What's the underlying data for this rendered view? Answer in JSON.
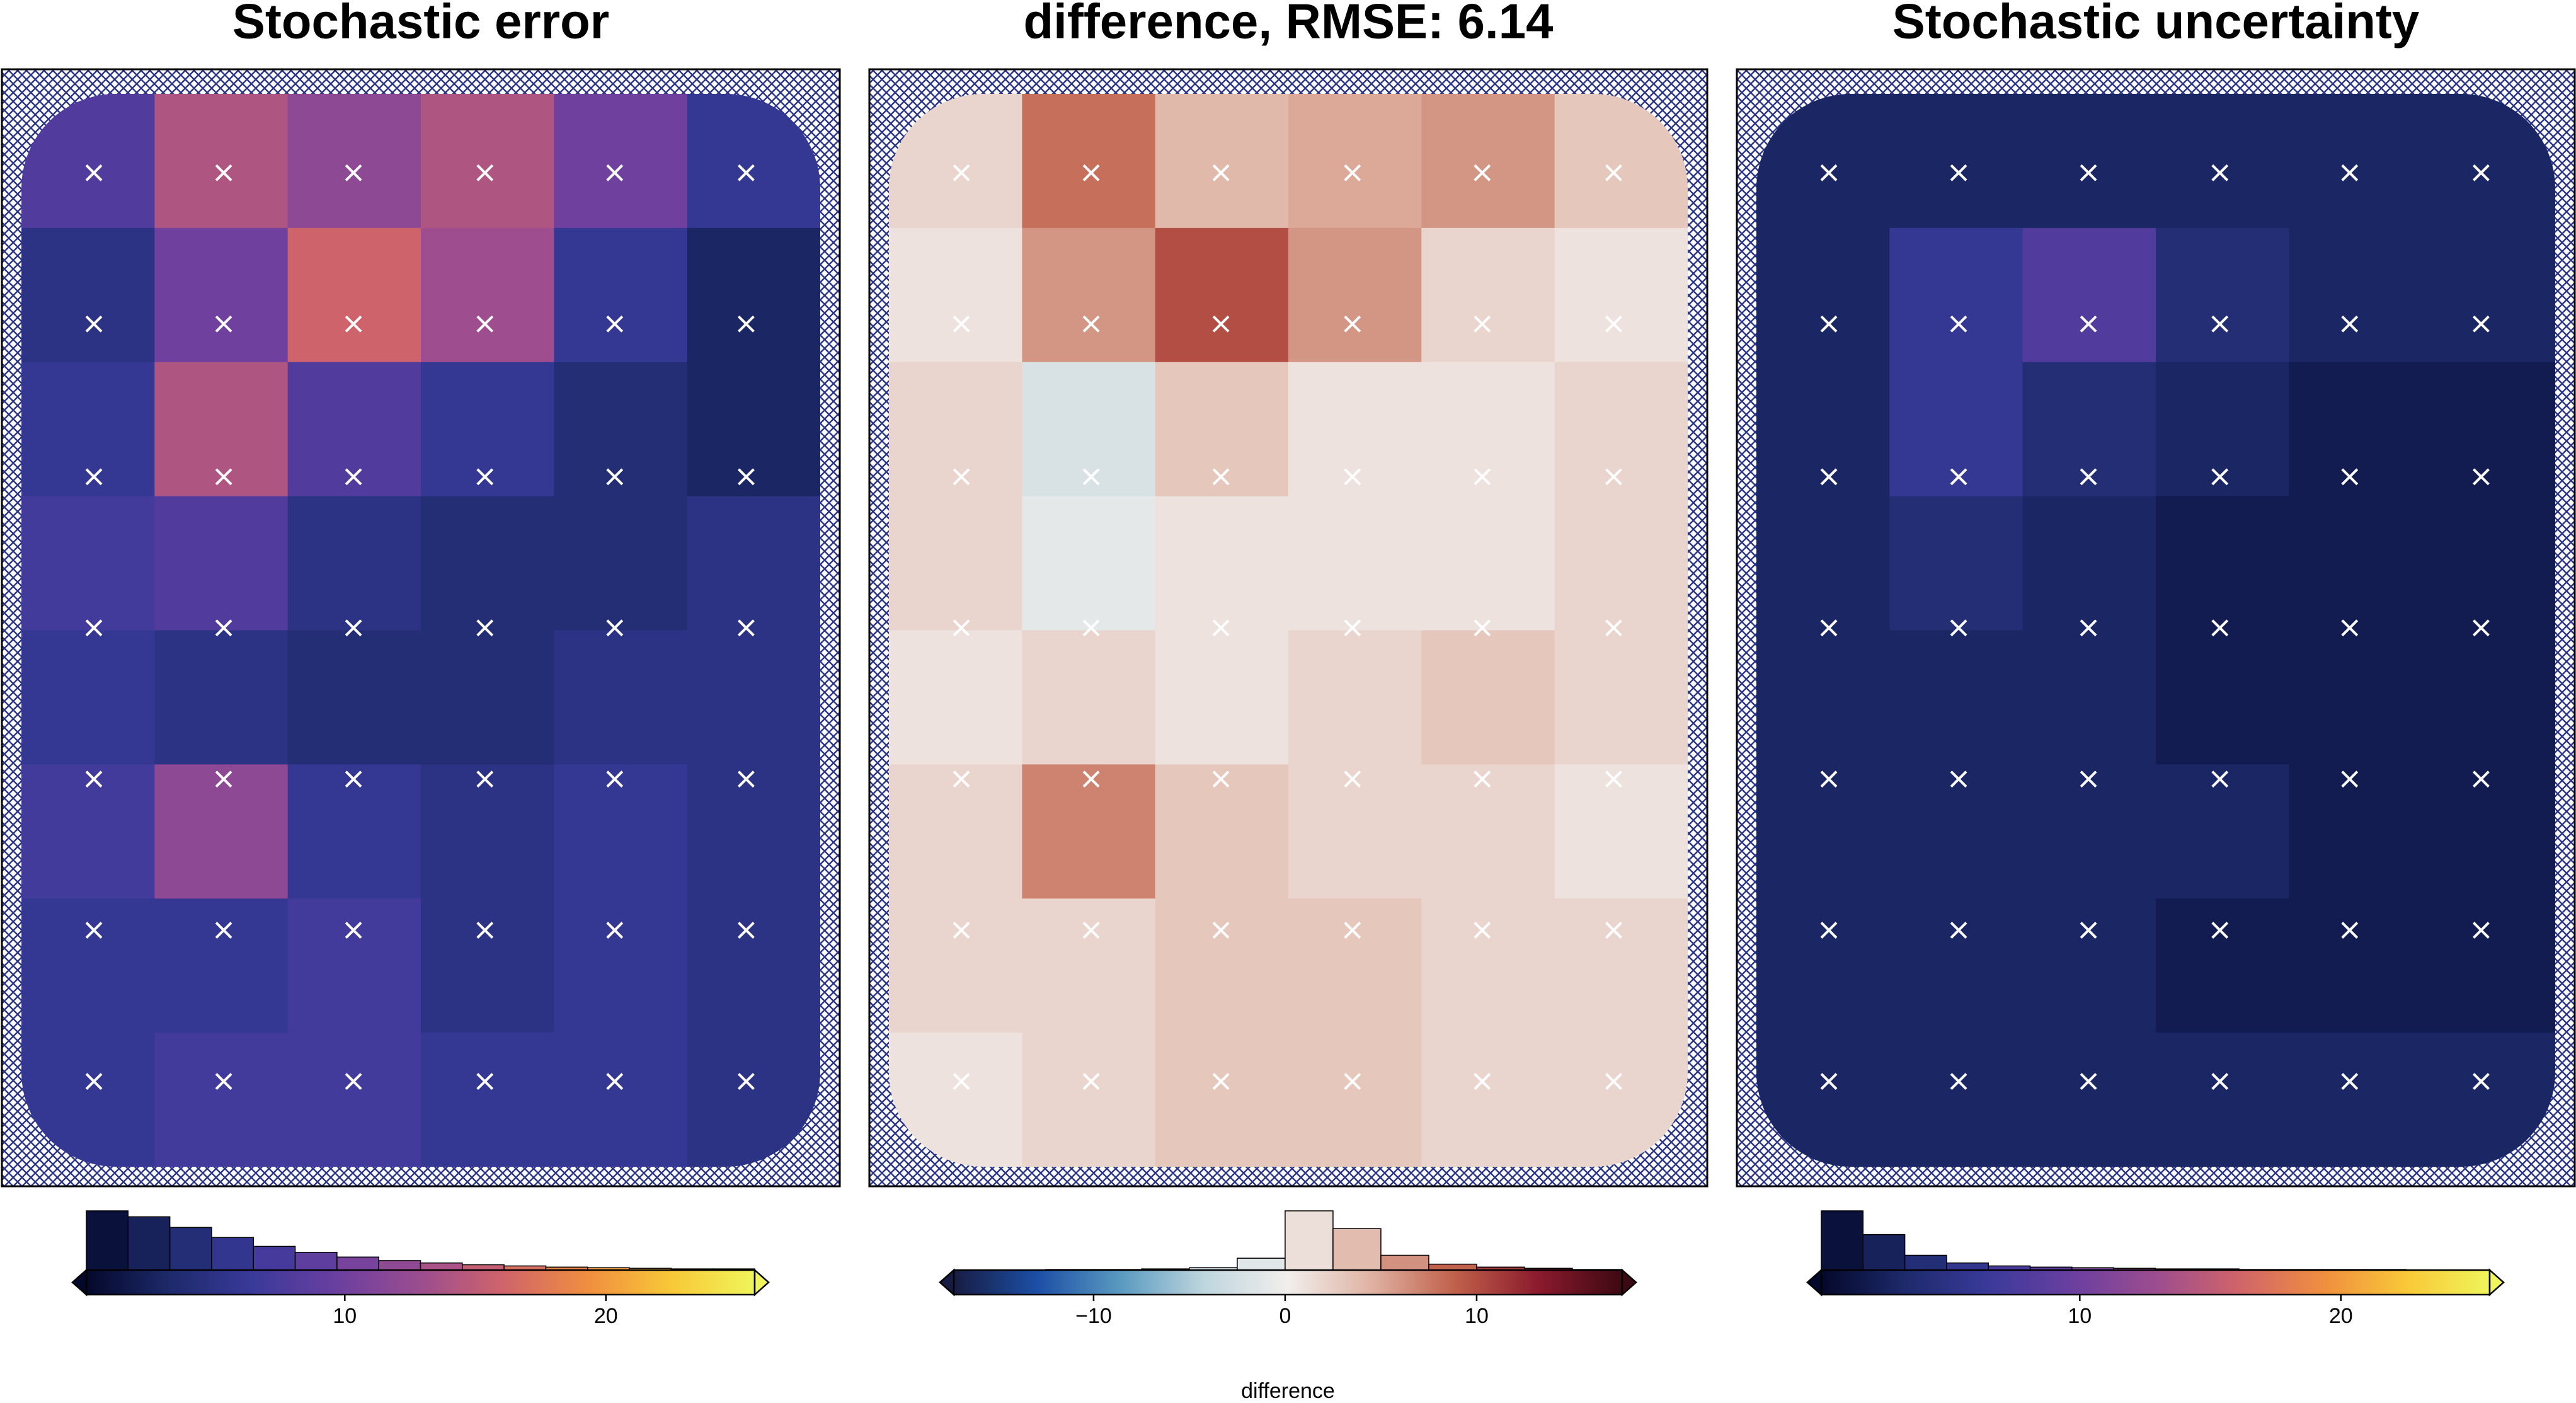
{
  "chart_data": [
    {
      "type": "heatmap",
      "title": "Stochastic error",
      "values": [
        [
          8,
          14,
          12,
          14,
          10,
          6
        ],
        [
          5,
          10,
          16,
          13,
          6,
          3
        ],
        [
          6,
          14,
          8,
          6,
          4,
          3
        ],
        [
          7,
          8,
          5,
          4,
          4,
          5
        ],
        [
          6,
          5,
          4,
          4,
          5,
          5
        ],
        [
          7,
          12,
          6,
          5,
          6,
          5
        ],
        [
          6,
          6,
          7,
          5,
          6,
          5
        ],
        [
          6,
          7,
          7,
          6,
          6,
          5
        ]
      ],
      "colormap": [
        "#04082a",
        "#1d2a6b",
        "#3a3a9a",
        "#6a3fa0",
        "#9c4d8f",
        "#d0646a",
        "#f08e3f",
        "#f8c838",
        "#eff55a"
      ],
      "colorbar": {
        "lim": [
          0.1,
          25.7
        ],
        "ticks": [
          10,
          20
        ],
        "bins": [
          0.1,
          1.7,
          3.3,
          4.9,
          6.5,
          8.1,
          9.7,
          11.3,
          12.9,
          14.5,
          16.1,
          17.7,
          19.3,
          20.9,
          22.5,
          24.1,
          25.7
        ],
        "counts": [
          100,
          90,
          72,
          55,
          40,
          30,
          22,
          16,
          12,
          9,
          7,
          5,
          4,
          3,
          2,
          2
        ]
      }
    },
    {
      "type": "heatmap",
      "title": "difference, RMSE: 6.14",
      "values": [
        [
          2,
          8,
          4,
          5,
          6,
          3
        ],
        [
          1,
          6,
          10,
          6,
          2,
          1
        ],
        [
          2,
          -2,
          3,
          1,
          1,
          2
        ],
        [
          2,
          -1,
          1,
          1,
          1,
          2
        ],
        [
          1,
          2,
          1,
          2,
          3,
          2
        ],
        [
          2,
          7,
          3,
          2,
          2,
          1
        ],
        [
          2,
          2,
          3,
          3,
          2,
          2
        ],
        [
          1,
          2,
          3,
          3,
          2,
          2
        ]
      ],
      "colormap": [
        "#181c43",
        "#1c4fa6",
        "#5a9ac0",
        "#bfd6de",
        "#f1eeec",
        "#dfb2a2",
        "#c0604a",
        "#8b1a2d",
        "#3c0912"
      ],
      "colorbar": {
        "lim": [
          -17.3,
          17.6
        ],
        "ticks": [
          {
            "value": -10,
            "label": "−10"
          },
          0,
          10
        ],
        "label": "difference",
        "bins": [
          -17.5,
          -15,
          -12.5,
          -10,
          -7.5,
          -5,
          -2.5,
          0,
          2.5,
          5,
          7.5,
          10,
          12.5,
          15,
          17.5
        ],
        "counts": [
          0,
          0,
          1,
          1,
          2,
          4,
          20,
          100,
          70,
          25,
          10,
          5,
          3,
          1
        ]
      }
    },
    {
      "type": "heatmap",
      "title": "Stochastic uncertainty",
      "values": [
        [
          3,
          3,
          3,
          3,
          3,
          3
        ],
        [
          3,
          6,
          8,
          4,
          3,
          3
        ],
        [
          3,
          6,
          4,
          3,
          2,
          2
        ],
        [
          3,
          4,
          3,
          2,
          2,
          2
        ],
        [
          3,
          3,
          3,
          2,
          2,
          2
        ],
        [
          3,
          3,
          3,
          3,
          2,
          2
        ],
        [
          3,
          3,
          3,
          2,
          2,
          2
        ],
        [
          3,
          3,
          3,
          3,
          3,
          3
        ]
      ],
      "colormap": [
        "#04082a",
        "#1d2a6b",
        "#3a3a9a",
        "#6a3fa0",
        "#9c4d8f",
        "#d0646a",
        "#f08e3f",
        "#f8c838",
        "#eff55a"
      ],
      "colorbar": {
        "lim": [
          0.1,
          25.7
        ],
        "ticks": [
          10,
          20
        ],
        "bins": [
          0.1,
          1.7,
          3.3,
          4.9,
          6.5,
          8.1,
          9.7,
          11.3,
          12.9,
          14.5,
          16.1,
          17.7,
          19.3,
          20.9,
          22.5,
          24.1,
          25.7
        ],
        "counts": [
          100,
          60,
          25,
          12,
          7,
          5,
          4,
          3,
          2,
          2,
          1,
          1,
          1,
          1,
          0,
          0
        ]
      }
    }
  ]
}
